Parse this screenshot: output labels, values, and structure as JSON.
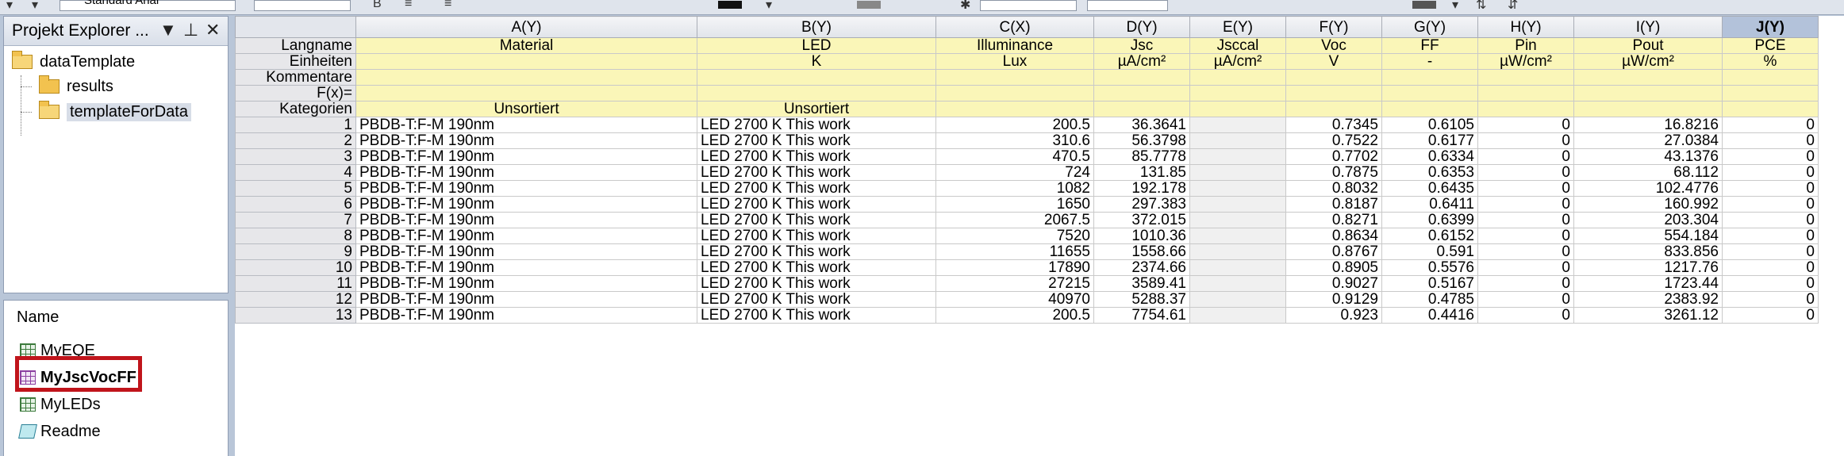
{
  "toolbar": {
    "font_box": "Standard Arial"
  },
  "project_explorer": {
    "title": "Projekt Explorer ...",
    "tree": [
      {
        "label": "dataTemplate",
        "level": 0,
        "state": "open"
      },
      {
        "label": "results",
        "level": 1,
        "state": "closed"
      },
      {
        "label": "templateForData",
        "level": 1,
        "state": "open",
        "selected": true
      }
    ],
    "list_header": "Name",
    "items": [
      {
        "label": "MyEQE",
        "icon": "workbook-icon"
      },
      {
        "label": "MyJscVocFF",
        "icon": "workbook-icon",
        "active": true
      },
      {
        "label": "MyLEDs",
        "icon": "workbook-icon"
      },
      {
        "label": "Readme",
        "icon": "notes-icon"
      }
    ]
  },
  "sheet": {
    "columns": [
      "A(Y)",
      "B(Y)",
      "C(X)",
      "D(Y)",
      "E(Y)",
      "F(Y)",
      "G(Y)",
      "H(Y)",
      "I(Y)",
      "J(Y)"
    ],
    "active_column": "J(Y)",
    "meta_rows": [
      {
        "label": "Langname",
        "values": [
          "Material",
          "LED",
          "Illuminance",
          "Jsc",
          "Jsccal",
          "Voc",
          "FF",
          "Pin",
          "Pout",
          "PCE"
        ]
      },
      {
        "label": "Einheiten",
        "values": [
          "",
          "K",
          "Lux",
          "µA/cm²",
          "µA/cm²",
          "V",
          "-",
          "µW/cm²",
          "µW/cm²",
          "%"
        ]
      },
      {
        "label": "Kommentare",
        "values": [
          "",
          "",
          "",
          "",
          "",
          "",
          "",
          "",
          "",
          ""
        ]
      },
      {
        "label": "F(x)=",
        "values": [
          "",
          "",
          "",
          "",
          "",
          "",
          "",
          "",
          "",
          ""
        ]
      },
      {
        "label": "Kategorien",
        "values": [
          "Unsortiert",
          "Unsortiert",
          "",
          "",
          "",
          "",
          "",
          "",
          "",
          ""
        ]
      }
    ],
    "rows": [
      [
        "1",
        "PBDB-T:F-M 190nm",
        "LED 2700 K This work",
        "200.5",
        "36.3641",
        "",
        "0.7345",
        "0.6105",
        "0",
        "16.8216",
        "0"
      ],
      [
        "2",
        "PBDB-T:F-M 190nm",
        "LED 2700 K This work",
        "310.6",
        "56.3798",
        "",
        "0.7522",
        "0.6177",
        "0",
        "27.0384",
        "0"
      ],
      [
        "3",
        "PBDB-T:F-M 190nm",
        "LED 2700 K This work",
        "470.5",
        "85.7778",
        "",
        "0.7702",
        "0.6334",
        "0",
        "43.1376",
        "0"
      ],
      [
        "4",
        "PBDB-T:F-M 190nm",
        "LED 2700 K This work",
        "724",
        "131.85",
        "",
        "0.7875",
        "0.6353",
        "0",
        "68.112",
        "0"
      ],
      [
        "5",
        "PBDB-T:F-M 190nm",
        "LED 2700 K This work",
        "1082",
        "192.178",
        "",
        "0.8032",
        "0.6435",
        "0",
        "102.4776",
        "0"
      ],
      [
        "6",
        "PBDB-T:F-M 190nm",
        "LED 2700 K This work",
        "1650",
        "297.383",
        "",
        "0.8187",
        "0.6411",
        "0",
        "160.992",
        "0"
      ],
      [
        "7",
        "PBDB-T:F-M 190nm",
        "LED 2700 K This work",
        "2067.5",
        "372.015",
        "",
        "0.8271",
        "0.6399",
        "0",
        "203.304",
        "0"
      ],
      [
        "8",
        "PBDB-T:F-M 190nm",
        "LED 2700 K This work",
        "7520",
        "1010.36",
        "",
        "0.8634",
        "0.6152",
        "0",
        "554.184",
        "0"
      ],
      [
        "9",
        "PBDB-T:F-M 190nm",
        "LED 2700 K This work",
        "11655",
        "1558.66",
        "",
        "0.8767",
        "0.591",
        "0",
        "833.856",
        "0"
      ],
      [
        "10",
        "PBDB-T:F-M 190nm",
        "LED 2700 K This work",
        "17890",
        "2374.66",
        "",
        "0.8905",
        "0.5576",
        "0",
        "1217.76",
        "0"
      ],
      [
        "11",
        "PBDB-T:F-M 190nm",
        "LED 2700 K This work",
        "27215",
        "3589.41",
        "",
        "0.9027",
        "0.5167",
        "0",
        "1723.44",
        "0"
      ],
      [
        "12",
        "PBDB-T:F-M 190nm",
        "LED 2700 K This work",
        "40970",
        "5288.37",
        "",
        "0.9129",
        "0.4785",
        "0",
        "2383.92",
        "0"
      ],
      [
        "13",
        "PBDB-T:F-M 190nm",
        "LED 2700 K This work",
        "200.5",
        "7754.61",
        "",
        "0.923",
        "0.4416",
        "0",
        "3261.12",
        "0"
      ]
    ]
  },
  "colors": {
    "meta_bg": "#faf6b8",
    "active_col_bg": "#b3c2da",
    "highlight_border": "#c0141b"
  }
}
